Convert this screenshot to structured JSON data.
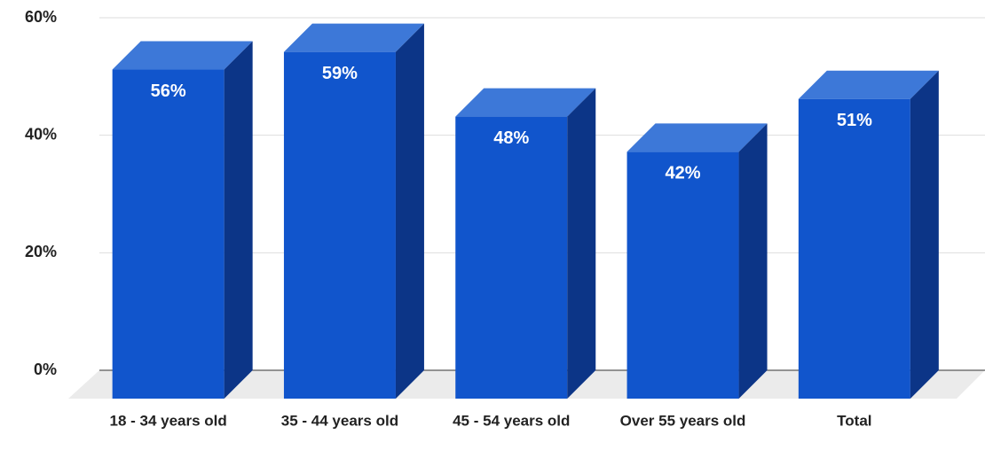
{
  "chart_data": {
    "type": "bar3d",
    "categories": [
      "18 - 34 years old",
      "35 - 44 years old",
      "45 - 54 years old",
      "Over 55 years old",
      "Total"
    ],
    "values": [
      56,
      59,
      48,
      42,
      51
    ],
    "value_labels": [
      "56%",
      "59%",
      "48%",
      "42%",
      "51%"
    ],
    "color": "#1155cc",
    "ylim": [
      0,
      60
    ],
    "yticks": [
      {
        "value": 0,
        "label": "0%"
      },
      {
        "value": 20,
        "label": "20%"
      },
      {
        "value": 40,
        "label": "40%"
      },
      {
        "value": 60,
        "label": "60%"
      }
    ],
    "grid": true
  }
}
